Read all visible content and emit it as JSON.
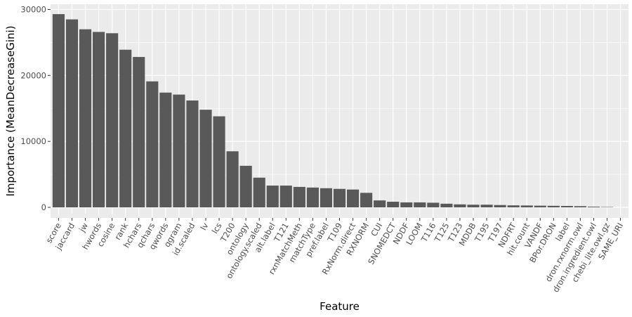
{
  "chart_data": {
    "type": "bar",
    "xlabel": "Feature",
    "ylabel": "Importance (MeanDecreaseGini)",
    "ylim": [
      -1600,
      30800
    ],
    "y_ticks": [
      0,
      10000,
      20000,
      30000
    ],
    "y_tick_labels": [
      "0",
      "10000",
      "20000",
      "30000"
    ],
    "grid": true,
    "legend": "none",
    "colors": {
      "bar": "#595959",
      "panel": "#ebebeb",
      "grid": "#ffffff"
    },
    "categories": [
      "score",
      "jaccard",
      "jw",
      "hwords",
      "cosine",
      "rank",
      "hchars",
      "qchars",
      "qwords",
      "qgram",
      "id.scaled",
      "lv",
      "lcs",
      "T200",
      "ontology",
      "ontology.scaled",
      "alt.label",
      "T121",
      "rxnMatchMeth",
      "matchType",
      "pref.label",
      "T109",
      "RxNorm.direct",
      "RXNORM",
      "CUI",
      "SNOMEDCT",
      "NDDF",
      "LOOM",
      "T116",
      "T125",
      "T123",
      "MDDB",
      "T195",
      "T197",
      "NDFRT",
      "hit.count",
      "VANDF",
      "BPor.DRON",
      "label",
      "dron.rxnorm.owl",
      "dron.ingredient.owl",
      "chebi_lite.owl.gz",
      "SAME_URI"
    ],
    "values": [
      29300,
      28500,
      27000,
      26600,
      26400,
      23900,
      22800,
      19100,
      17400,
      17100,
      16200,
      14800,
      13800,
      8500,
      6300,
      4500,
      3300,
      3300,
      3100,
      3000,
      2900,
      2800,
      2700,
      2200,
      1050,
      850,
      750,
      750,
      700,
      550,
      450,
      400,
      400,
      350,
      300,
      280,
      250,
      230,
      210,
      180,
      100,
      50,
      0
    ]
  }
}
